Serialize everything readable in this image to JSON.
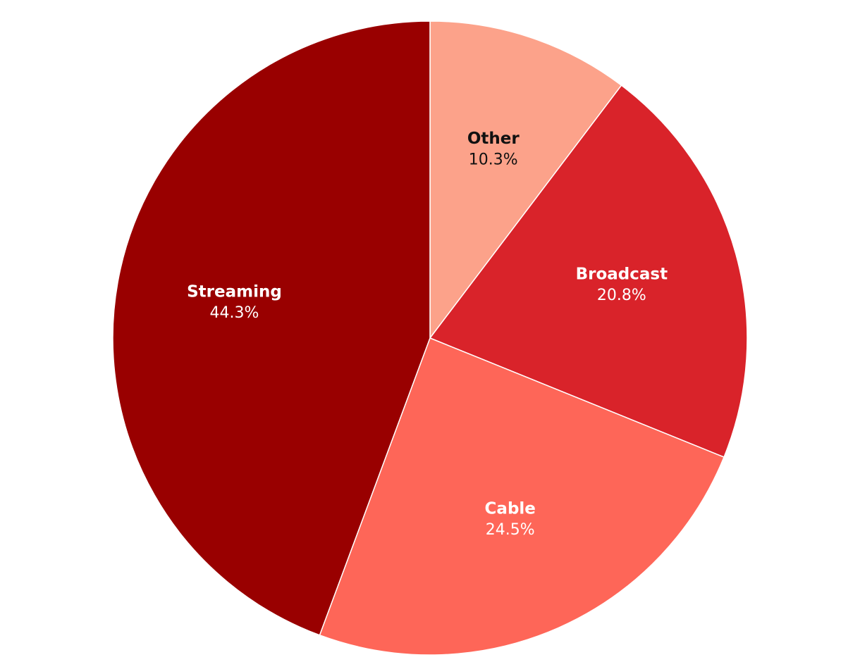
{
  "chart_data": {
    "type": "pie",
    "categories": [
      "Other",
      "Broadcast",
      "Cable",
      "Streaming"
    ],
    "values": [
      10.3,
      20.8,
      24.5,
      44.3
    ],
    "value_labels": [
      "10.3%",
      "20.8%",
      "24.5%",
      "44.3%"
    ],
    "colors": [
      "#fca28a",
      "#d9232a",
      "#fe6658",
      "#990000"
    ],
    "label_colors": [
      "#111111",
      "#ffffff",
      "#ffffff",
      "#ffffff"
    ],
    "start_angle": 0,
    "direction": "clockwise"
  }
}
